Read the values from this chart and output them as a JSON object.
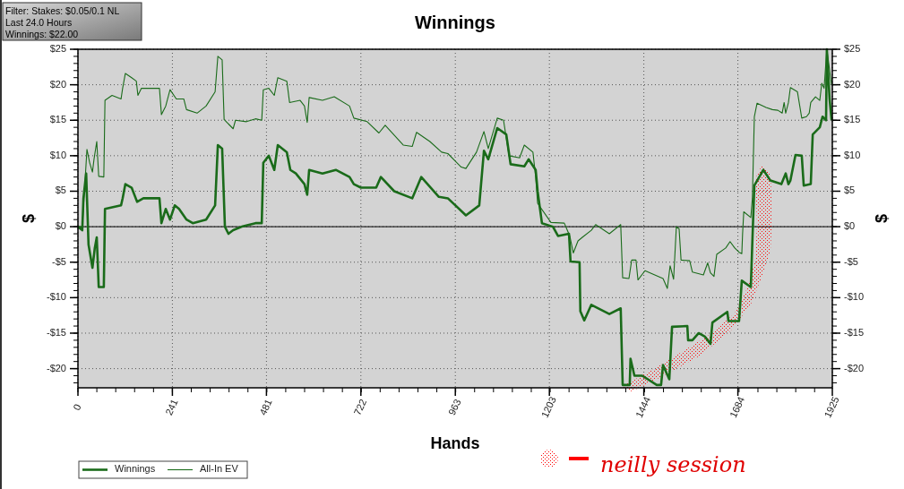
{
  "chart_data": {
    "type": "line",
    "title": "Winnings",
    "xlabel": "Hands",
    "ylabel": "$",
    "y2label": "$",
    "annotations": [
      "Filter: Stakes: $0.05/0.1 NL",
      "Last 24.0 Hours",
      "Winnings: $22.00",
      "neilly session"
    ],
    "xlim": [
      0,
      1925
    ],
    "xticks": [
      0,
      241,
      481,
      722,
      963,
      1203,
      1444,
      1684,
      1925
    ],
    "ylim": [
      -22.7,
      25
    ],
    "yticks": [
      {
        "value": -20,
        "label": "-$20"
      },
      {
        "value": -15,
        "label": "-$15"
      },
      {
        "value": -10,
        "label": "-$10"
      },
      {
        "value": -5,
        "label": "-$5"
      },
      {
        "value": 0,
        "label": "$0"
      },
      {
        "value": 5,
        "label": "$5"
      },
      {
        "value": 10,
        "label": "$10"
      },
      {
        "value": 15,
        "label": "$15"
      },
      {
        "value": 20,
        "label": "$20"
      },
      {
        "value": 25,
        "label": "$25"
      }
    ],
    "y2lim": [
      -22.7,
      25
    ],
    "y2ticks": [
      {
        "value": -20,
        "label": "-$20"
      },
      {
        "value": -15,
        "label": "-$15"
      },
      {
        "value": -10,
        "label": "-$10"
      },
      {
        "value": -5,
        "label": "-$5"
      },
      {
        "value": 0,
        "label": "$0"
      },
      {
        "value": 5,
        "label": "$5"
      },
      {
        "value": 10,
        "label": "$10"
      },
      {
        "value": 15,
        "label": "$15"
      },
      {
        "value": 20,
        "label": "$20"
      },
      {
        "value": 25,
        "label": "$25"
      }
    ],
    "grid": true,
    "legend": "bottom left",
    "marker": "none",
    "line_style": "solid",
    "ref_lines": [
      {
        "axis": "y",
        "value": 0,
        "color": "#000000"
      }
    ],
    "series": [
      {
        "name": "Winnings",
        "color": "#1a6b1a",
        "x": [
          0,
          11,
          14,
          21,
          27,
          37,
          43,
          48,
          53,
          66,
          69,
          110,
          114,
          121,
          137,
          151,
          167,
          208,
          213,
          224,
          235,
          247,
          258,
          277,
          293,
          327,
          350,
          357,
          368,
          375,
          384,
          396,
          418,
          453,
          469,
          473,
          487,
          501,
          510,
          533,
          542,
          556,
          578,
          585,
          590,
          624,
          658,
          693,
          704,
          722,
          761,
          773,
          807,
          853,
          876,
          921,
          944,
          990,
          1024,
          1036,
          1047,
          1070,
          1093,
          1104,
          1139,
          1150,
          1168,
          1173,
          1184,
          1212,
          1225,
          1253,
          1257,
          1280,
          1282,
          1292,
          1310,
          1356,
          1385,
          1390,
          1408,
          1410,
          1420,
          1440,
          1477,
          1488,
          1493,
          1509,
          1516,
          1555,
          1557,
          1568,
          1584,
          1600,
          1614,
          1619,
          1657,
          1660,
          1687,
          1694,
          1717,
          1721,
          1726,
          1749,
          1767,
          1795,
          1806,
          1813,
          1818,
          1831,
          1847,
          1852,
          1870,
          1875,
          1893,
          1900,
          1909,
          1911,
          1918,
          1923
        ],
        "values": [
          0,
          -0.5,
          4,
          7.5,
          -2.5,
          -5.8,
          -3,
          -1.5,
          -8.5,
          -8.5,
          2.5,
          3,
          4,
          6,
          5.5,
          3.5,
          4,
          4,
          0.5,
          2.5,
          1,
          3,
          2.5,
          1,
          0.5,
          1,
          3,
          11.5,
          11,
          0,
          -1,
          -0.5,
          0,
          0.5,
          0.5,
          9,
          10,
          8,
          11.5,
          10.5,
          8,
          7.5,
          6,
          4.5,
          8,
          7.5,
          8,
          7,
          6,
          5.5,
          5.5,
          7,
          5,
          4,
          7,
          4.2,
          4,
          1.6,
          3,
          10.7,
          9.5,
          13.9,
          13,
          8.8,
          8.5,
          9.5,
          8,
          5,
          0.5,
          0,
          -1.3,
          -1,
          -4.9,
          -5,
          -11.9,
          -13.2,
          -11,
          -12.3,
          -11.5,
          -22.3,
          -22.3,
          -18.6,
          -21,
          -21,
          -22.3,
          -22.3,
          -19.5,
          -21.5,
          -14.1,
          -14,
          -16,
          -16,
          -15,
          -15.5,
          -16.5,
          -13.5,
          -12,
          -13.3,
          -13.3,
          -7.6,
          -8.5,
          -2,
          5.8,
          8,
          6.5,
          6,
          7.5,
          6,
          6.5,
          10.1,
          10,
          5.8,
          6,
          13,
          14,
          15.5,
          15,
          25,
          18,
          15
        ]
      },
      {
        "name": "All-In EV",
        "color": "#1a6b1a",
        "x": [
          0,
          11,
          23,
          30,
          37,
          41,
          48,
          53,
          66,
          69,
          87,
          110,
          114,
          121,
          137,
          149,
          153,
          162,
          208,
          213,
          224,
          235,
          251,
          270,
          277,
          304,
          327,
          350,
          357,
          368,
          373,
          396,
          402,
          430,
          453,
          469,
          473,
          487,
          501,
          510,
          533,
          540,
          567,
          578,
          585,
          590,
          624,
          654,
          693,
          704,
          738,
          768,
          784,
          830,
          853,
          864,
          898,
          928,
          944,
          978,
          990,
          1017,
          1036,
          1047,
          1070,
          1086,
          1100,
          1127,
          1139,
          1161,
          1168,
          1173,
          1207,
          1241,
          1255,
          1264,
          1276,
          1287,
          1310,
          1321,
          1356,
          1385,
          1390,
          1406,
          1413,
          1424,
          1429,
          1447,
          1493,
          1504,
          1511,
          1520,
          1527,
          1534,
          1539,
          1561,
          1568,
          1596,
          1607,
          1614,
          1623,
          1630,
          1653,
          1664,
          1676,
          1687,
          1694,
          1696,
          1699,
          1717,
          1721,
          1726,
          1733,
          1756,
          1772,
          1786,
          1797,
          1802,
          1806,
          1813,
          1818,
          1836,
          1847,
          1859,
          1866,
          1870,
          1882,
          1893,
          1898,
          1904,
          1911,
          1923
        ],
        "values": [
          0,
          0,
          10.9,
          9,
          7.7,
          9.5,
          12,
          7.1,
          7,
          17.8,
          18.5,
          18,
          19.5,
          21.6,
          21,
          20.5,
          18.5,
          19.5,
          19.5,
          15.8,
          17,
          19.3,
          18,
          18,
          16.5,
          16,
          17,
          19,
          24,
          23.5,
          15.1,
          13.8,
          15,
          14.8,
          15.2,
          15,
          19.3,
          19.5,
          18.5,
          21,
          20.5,
          17.5,
          17.8,
          17,
          14.7,
          18.2,
          17.8,
          18.3,
          17,
          15.3,
          14.8,
          13.2,
          14.3,
          11.5,
          11.3,
          13.3,
          12,
          10.5,
          10.3,
          8.4,
          8.2,
          10.5,
          13.4,
          11,
          15.3,
          15,
          10,
          9.7,
          11.5,
          10.5,
          7,
          3.3,
          0.6,
          0.5,
          -1.3,
          -3.7,
          -2,
          -1.5,
          -0.5,
          0.3,
          -1,
          0.3,
          -7.2,
          -7.3,
          -4.7,
          -4.7,
          -7.5,
          -6.2,
          -7.3,
          -8.7,
          -5.5,
          -7.4,
          0,
          -0.3,
          -4.7,
          -4.8,
          -6.4,
          -6.8,
          -5.1,
          -6.5,
          -7,
          -3.9,
          -3,
          -2.1,
          -3,
          -3.6,
          -3.8,
          -1,
          2.1,
          1.3,
          4,
          15.5,
          17.4,
          16.8,
          16.5,
          16.4,
          16,
          17.5,
          16,
          17.5,
          19.6,
          19,
          15.3,
          15.5,
          16,
          17.5,
          18.3,
          17.8,
          20.2,
          19.5,
          25,
          20
        ]
      }
    ]
  }
}
